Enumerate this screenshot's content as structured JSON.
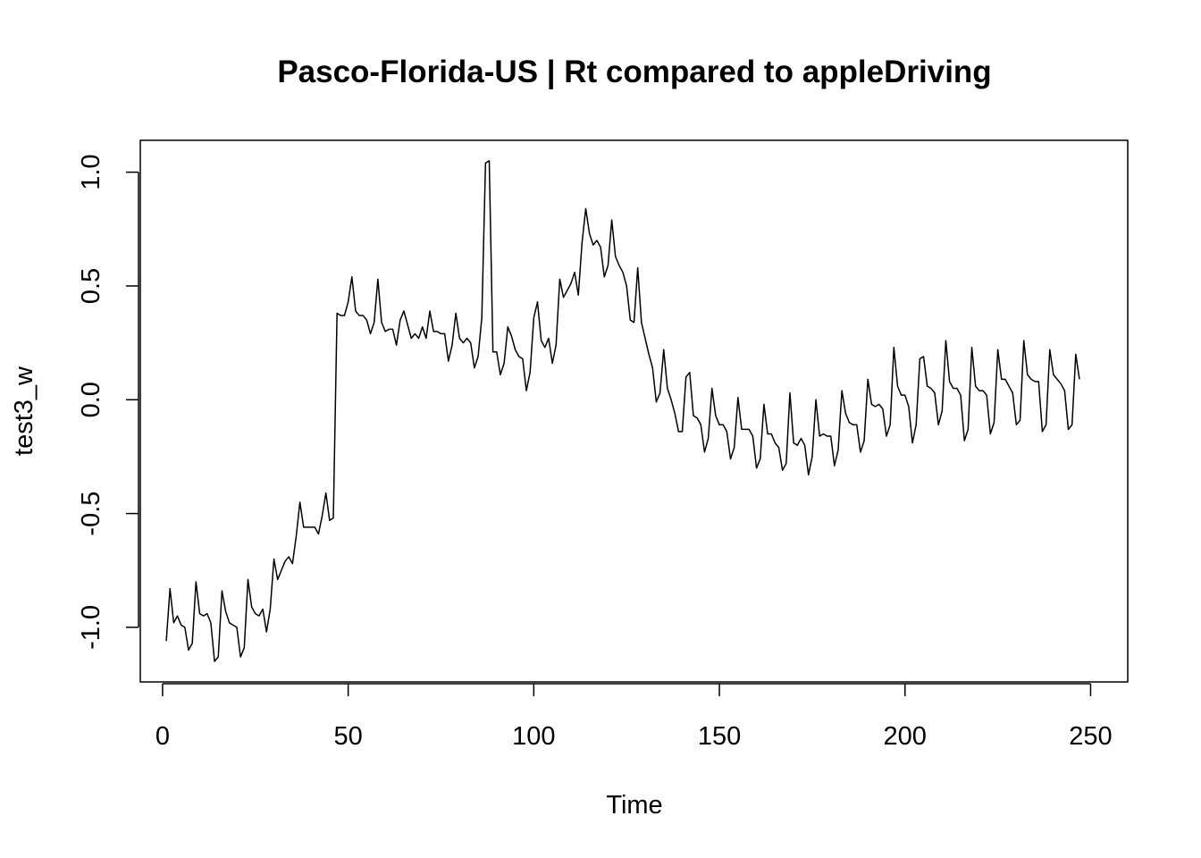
{
  "chart_data": {
    "type": "line",
    "title": "Pasco-Florida-US | Rt compared to appleDriving",
    "xlabel": "Time",
    "ylabel": "test3_w",
    "xlim": [
      -6,
      260
    ],
    "ylim": [
      -1.24,
      1.14
    ],
    "x_ticks": [
      0,
      50,
      100,
      150,
      200,
      250
    ],
    "x_tick_labels": [
      "0",
      "50",
      "100",
      "150",
      "200",
      "250"
    ],
    "y_ticks": [
      -1.0,
      -0.5,
      0.0,
      0.5,
      1.0
    ],
    "y_tick_labels": [
      "-1.0",
      "-0.5",
      "0.0",
      "0.5",
      "1.0"
    ],
    "grid": false,
    "x_start": 1,
    "series": [
      {
        "values": [
          -1.06,
          -0.83,
          -0.98,
          -0.95,
          -0.99,
          -1.0,
          -1.1,
          -1.07,
          -0.8,
          -0.94,
          -0.95,
          -0.94,
          -0.98,
          -1.15,
          -1.13,
          -0.84,
          -0.93,
          -0.98,
          -0.99,
          -1.0,
          -1.13,
          -1.09,
          -0.79,
          -0.91,
          -0.94,
          -0.95,
          -0.92,
          -1.02,
          -0.92,
          -0.7,
          -0.79,
          -0.75,
          -0.71,
          -0.69,
          -0.72,
          -0.6,
          -0.45,
          -0.56,
          -0.56,
          -0.56,
          -0.56,
          -0.59,
          -0.51,
          -0.41,
          -0.53,
          -0.52,
          0.38,
          0.37,
          0.37,
          0.43,
          0.54,
          0.39,
          0.37,
          0.37,
          0.35,
          0.29,
          0.34,
          0.53,
          0.34,
          0.3,
          0.31,
          0.31,
          0.24,
          0.35,
          0.39,
          0.33,
          0.27,
          0.29,
          0.27,
          0.32,
          0.27,
          0.39,
          0.3,
          0.3,
          0.29,
          0.29,
          0.17,
          0.24,
          0.38,
          0.27,
          0.25,
          0.27,
          0.25,
          0.14,
          0.19,
          0.36,
          1.04,
          1.05,
          0.21,
          0.21,
          0.11,
          0.16,
          0.32,
          0.28,
          0.22,
          0.19,
          0.18,
          0.04,
          0.12,
          0.36,
          0.43,
          0.26,
          0.23,
          0.27,
          0.16,
          0.24,
          0.53,
          0.45,
          0.48,
          0.51,
          0.56,
          0.46,
          0.69,
          0.84,
          0.73,
          0.68,
          0.7,
          0.67,
          0.54,
          0.59,
          0.79,
          0.63,
          0.59,
          0.56,
          0.5,
          0.35,
          0.34,
          0.58,
          0.34,
          0.27,
          0.2,
          0.14,
          -0.01,
          0.03,
          0.22,
          0.05,
          0.0,
          -0.06,
          -0.14,
          -0.14,
          0.1,
          0.12,
          -0.07,
          -0.08,
          -0.11,
          -0.23,
          -0.17,
          0.05,
          -0.07,
          -0.11,
          -0.11,
          -0.14,
          -0.26,
          -0.21,
          0.01,
          -0.13,
          -0.13,
          -0.13,
          -0.16,
          -0.3,
          -0.26,
          -0.02,
          -0.15,
          -0.15,
          -0.19,
          -0.21,
          -0.31,
          -0.28,
          0.03,
          -0.19,
          -0.2,
          -0.17,
          -0.2,
          -0.33,
          -0.25,
          0.0,
          -0.16,
          -0.15,
          -0.16,
          -0.16,
          -0.29,
          -0.22,
          0.04,
          -0.06,
          -0.1,
          -0.11,
          -0.11,
          -0.23,
          -0.18,
          0.09,
          -0.02,
          -0.03,
          -0.02,
          -0.04,
          -0.16,
          -0.11,
          0.23,
          0.06,
          0.02,
          0.02,
          -0.03,
          -0.19,
          -0.11,
          0.18,
          0.19,
          0.06,
          0.05,
          0.03,
          -0.11,
          -0.05,
          0.26,
          0.08,
          0.05,
          0.05,
          0.02,
          -0.18,
          -0.13,
          0.23,
          0.06,
          0.04,
          0.04,
          0.02,
          -0.15,
          -0.1,
          0.22,
          0.09,
          0.09,
          0.06,
          0.03,
          -0.11,
          -0.09,
          0.26,
          0.11,
          0.09,
          0.08,
          0.08,
          -0.14,
          -0.11,
          0.22,
          0.11,
          0.09,
          0.07,
          0.04,
          -0.13,
          -0.11,
          0.2,
          0.09
        ]
      }
    ]
  }
}
